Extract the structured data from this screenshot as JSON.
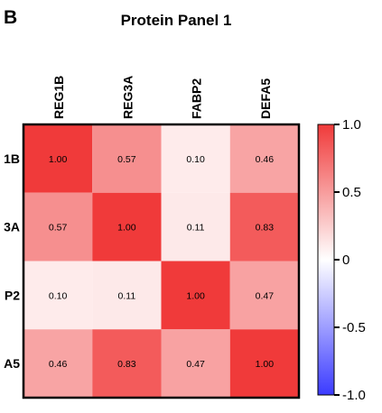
{
  "panel_letter": "B",
  "chart_data": {
    "type": "heatmap",
    "title": "Protein Panel 1",
    "columns": [
      "REG1B",
      "REG3A",
      "FABP2",
      "DEFA5"
    ],
    "rows": [
      "1B",
      "3A",
      "P2",
      "A5"
    ],
    "values": [
      [
        1.0,
        0.57,
        0.1,
        0.46
      ],
      [
        0.57,
        1.0,
        0.11,
        0.83
      ],
      [
        0.1,
        0.11,
        1.0,
        0.47
      ],
      [
        0.46,
        0.83,
        0.47,
        1.0
      ]
    ],
    "value_format": "0.00",
    "colorbar": {
      "range": [
        -1.0,
        1.0
      ],
      "ticks": [
        1.0,
        0.5,
        0,
        -0.5,
        -1.0
      ],
      "tick_labels": [
        "1.0",
        "0.5",
        "0",
        "-0.5",
        "-1.0"
      ],
      "colors": {
        "low": "#3b3bff",
        "mid": "#ffffff",
        "high": "#f03a3a"
      }
    }
  }
}
